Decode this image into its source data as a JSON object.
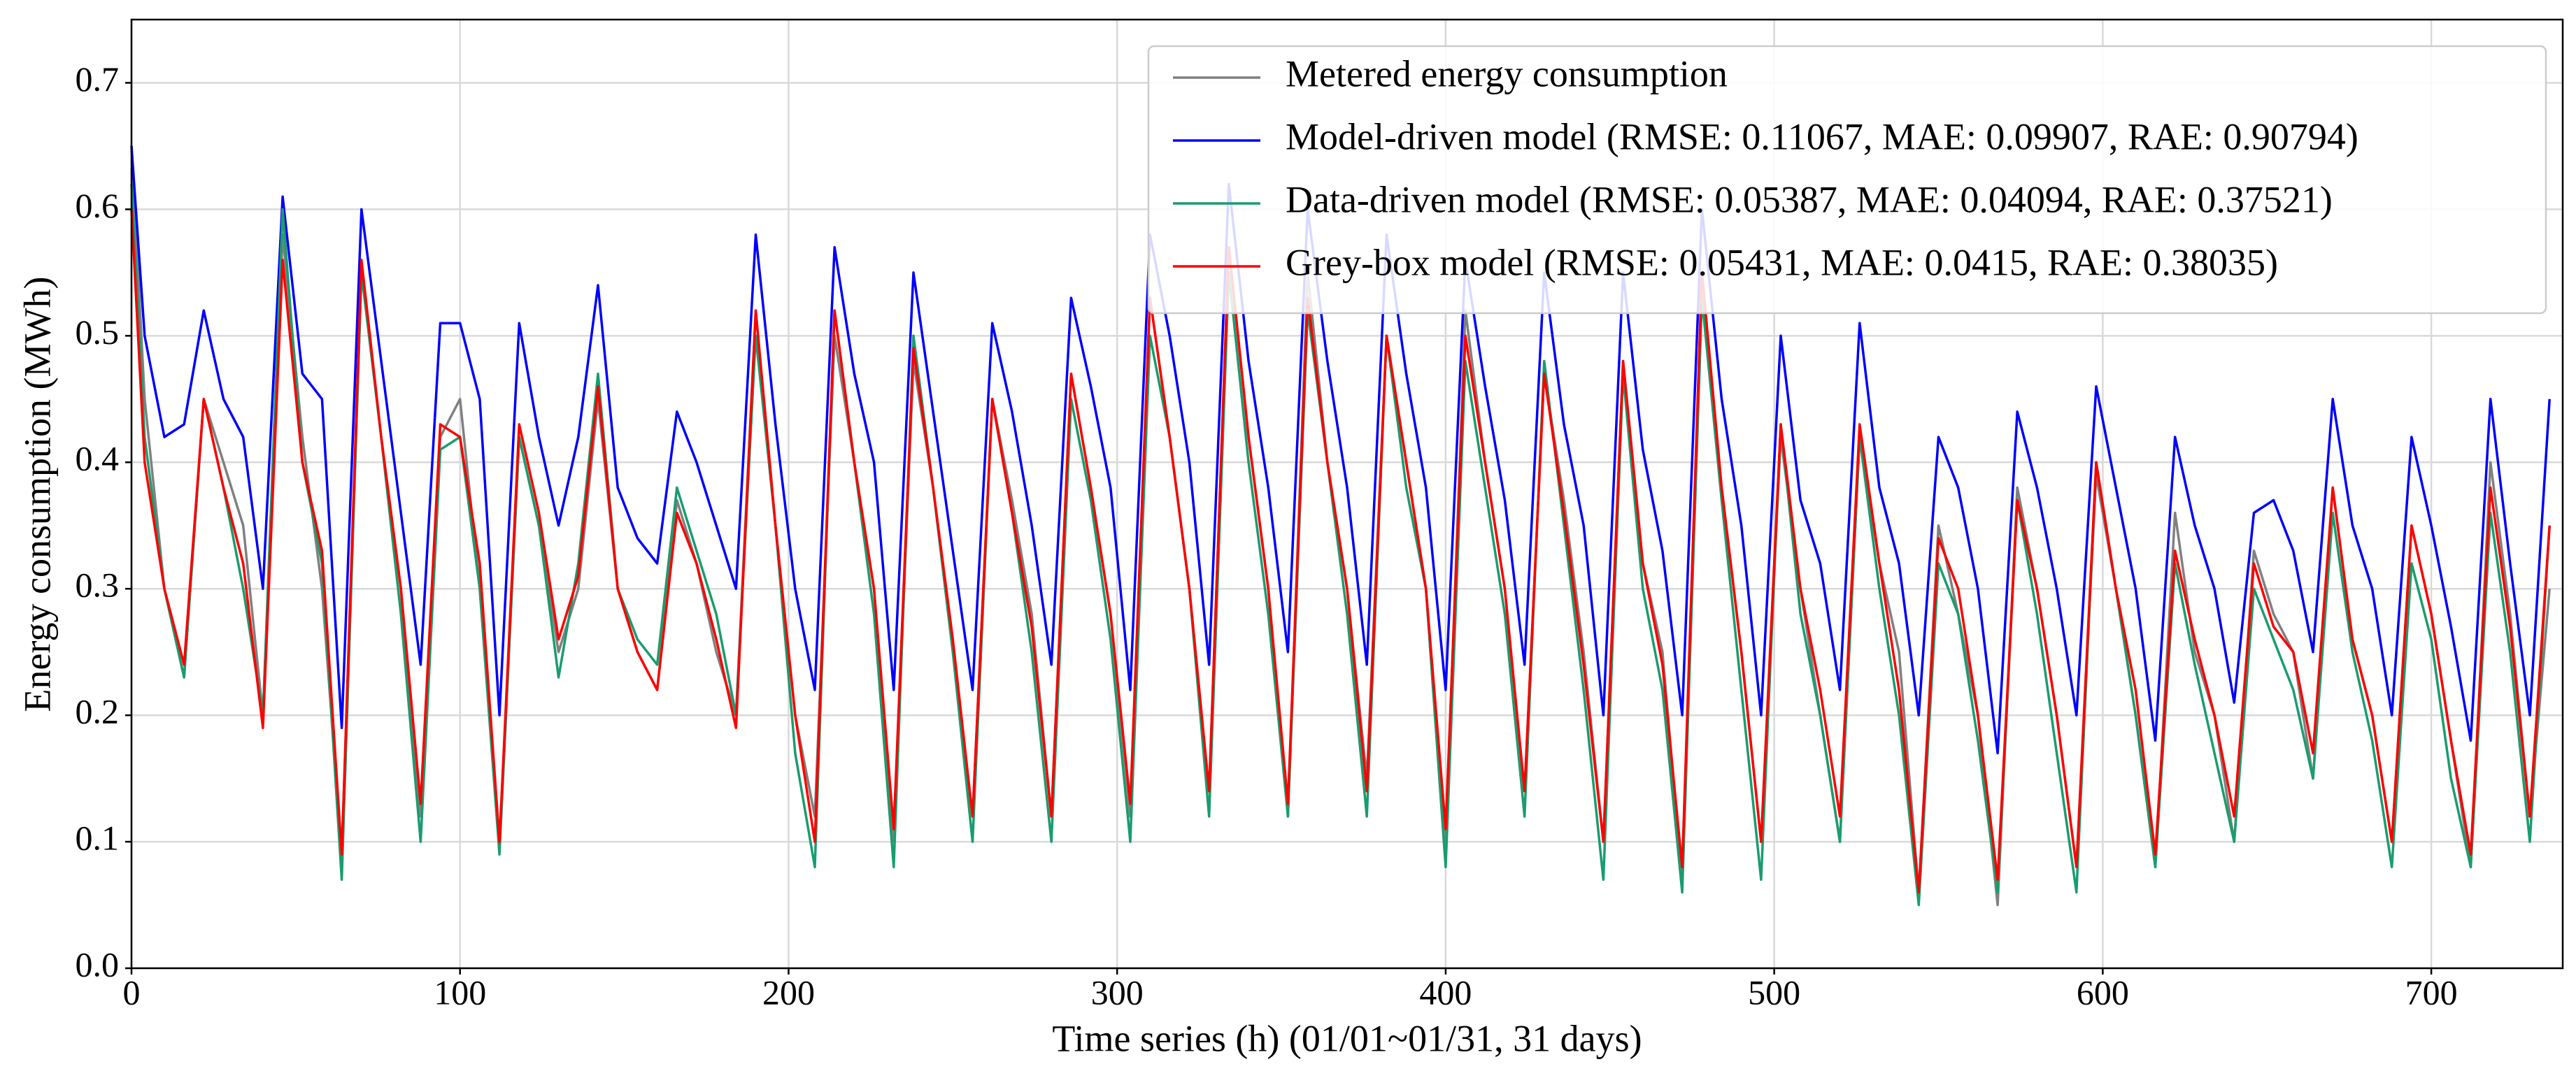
{
  "chart_data": {
    "type": "line",
    "x_label": "Time series (h) (01/01~01/31, 31 days)",
    "y_label": "Energy consumption (MWh)",
    "xlim": [
      0,
      740
    ],
    "ylim": [
      0,
      0.75
    ],
    "xticks": [
      0,
      100,
      200,
      300,
      400,
      500,
      600,
      700
    ],
    "yticks": [
      {
        "value": 0,
        "label": "0.0"
      },
      0.1,
      0.2,
      0.3,
      0.4,
      0.5,
      0.6,
      0.7
    ],
    "grid": true,
    "legend": "upper right",
    "x": [
      0,
      4,
      10,
      16,
      22,
      28,
      34,
      40,
      46,
      52,
      58,
      64,
      70,
      76,
      82,
      88,
      94,
      100,
      106,
      112,
      118,
      124,
      130,
      136,
      142,
      148,
      154,
      160,
      166,
      172,
      178,
      184,
      190,
      196,
      202,
      208,
      214,
      220,
      226,
      232,
      238,
      244,
      250,
      256,
      262,
      268,
      274,
      280,
      286,
      292,
      298,
      304,
      310,
      316,
      322,
      328,
      334,
      340,
      346,
      352,
      358,
      364,
      370,
      376,
      382,
      388,
      394,
      400,
      406,
      412,
      418,
      424,
      430,
      436,
      442,
      448,
      454,
      460,
      466,
      472,
      478,
      484,
      490,
      496,
      502,
      508,
      514,
      520,
      526,
      532,
      538,
      544,
      550,
      556,
      562,
      568,
      574,
      580,
      586,
      592,
      598,
      604,
      610,
      616,
      622,
      628,
      634,
      640,
      646,
      652,
      658,
      664,
      670,
      676,
      682,
      688,
      694,
      700,
      706,
      712,
      718,
      724,
      730,
      736
    ],
    "series": [
      {
        "name": "Metered energy consumption",
        "color": "#808080",
        "values": [
          0.65,
          0.45,
          0.3,
          0.23,
          0.45,
          0.4,
          0.35,
          0.2,
          0.58,
          0.42,
          0.3,
          0.09,
          0.55,
          0.42,
          0.3,
          0.12,
          0.42,
          0.45,
          0.3,
          0.1,
          0.42,
          0.35,
          0.25,
          0.3,
          0.45,
          0.3,
          0.25,
          0.22,
          0.37,
          0.32,
          0.25,
          0.2,
          0.52,
          0.35,
          0.2,
          0.12,
          0.5,
          0.4,
          0.3,
          0.1,
          0.48,
          0.38,
          0.25,
          0.12,
          0.45,
          0.37,
          0.28,
          0.12,
          0.47,
          0.38,
          0.28,
          0.12,
          0.53,
          0.42,
          0.3,
          0.14,
          0.57,
          0.42,
          0.3,
          0.12,
          0.55,
          0.4,
          0.3,
          0.15,
          0.5,
          0.4,
          0.3,
          0.1,
          0.52,
          0.4,
          0.3,
          0.14,
          0.47,
          0.37,
          0.25,
          0.1,
          0.48,
          0.32,
          0.25,
          0.07,
          0.55,
          0.38,
          0.25,
          0.1,
          0.42,
          0.3,
          0.2,
          0.1,
          0.42,
          0.32,
          0.25,
          0.06,
          0.35,
          0.28,
          0.2,
          0.05,
          0.38,
          0.3,
          0.2,
          0.08,
          0.39,
          0.3,
          0.2,
          0.08,
          0.36,
          0.25,
          0.2,
          0.1,
          0.33,
          0.28,
          0.25,
          0.15,
          0.38,
          0.26,
          0.2,
          0.1,
          0.35,
          0.28,
          0.18,
          0.08,
          0.4,
          0.28,
          0.12,
          0.3
        ]
      },
      {
        "name": "Model-driven model (RMSE: 0.11067, MAE: 0.09907, RAE: 0.90794)",
        "color": "#0000ff",
        "values": [
          0.65,
          0.5,
          0.42,
          0.43,
          0.52,
          0.45,
          0.42,
          0.3,
          0.61,
          0.47,
          0.45,
          0.19,
          0.6,
          0.48,
          0.36,
          0.24,
          0.51,
          0.51,
          0.45,
          0.2,
          0.51,
          0.42,
          0.35,
          0.42,
          0.54,
          0.38,
          0.34,
          0.32,
          0.44,
          0.4,
          0.35,
          0.3,
          0.58,
          0.43,
          0.3,
          0.22,
          0.57,
          0.47,
          0.4,
          0.22,
          0.55,
          0.44,
          0.33,
          0.22,
          0.51,
          0.44,
          0.35,
          0.24,
          0.53,
          0.46,
          0.38,
          0.22,
          0.58,
          0.5,
          0.4,
          0.24,
          0.62,
          0.48,
          0.38,
          0.25,
          0.6,
          0.48,
          0.38,
          0.24,
          0.58,
          0.47,
          0.38,
          0.22,
          0.56,
          0.46,
          0.37,
          0.24,
          0.55,
          0.43,
          0.35,
          0.2,
          0.55,
          0.41,
          0.33,
          0.2,
          0.6,
          0.45,
          0.35,
          0.2,
          0.5,
          0.37,
          0.32,
          0.22,
          0.51,
          0.38,
          0.32,
          0.2,
          0.42,
          0.38,
          0.3,
          0.17,
          0.44,
          0.38,
          0.3,
          0.2,
          0.46,
          0.38,
          0.3,
          0.18,
          0.42,
          0.35,
          0.3,
          0.21,
          0.36,
          0.37,
          0.33,
          0.25,
          0.45,
          0.35,
          0.3,
          0.2,
          0.42,
          0.35,
          0.27,
          0.18,
          0.45,
          0.32,
          0.2,
          0.45
        ]
      },
      {
        "name": "Data-driven model (RMSE: 0.05387, MAE: 0.04094, RAE: 0.37521)",
        "color": "#1a9c6e",
        "values": [
          0.62,
          0.42,
          0.3,
          0.23,
          0.45,
          0.38,
          0.3,
          0.2,
          0.6,
          0.4,
          0.32,
          0.07,
          0.55,
          0.42,
          0.28,
          0.1,
          0.41,
          0.42,
          0.3,
          0.09,
          0.42,
          0.35,
          0.23,
          0.32,
          0.47,
          0.3,
          0.26,
          0.24,
          0.38,
          0.33,
          0.28,
          0.2,
          0.5,
          0.35,
          0.17,
          0.08,
          0.52,
          0.4,
          0.28,
          0.08,
          0.5,
          0.38,
          0.25,
          0.1,
          0.45,
          0.36,
          0.25,
          0.1,
          0.45,
          0.37,
          0.26,
          0.1,
          0.5,
          0.42,
          0.3,
          0.12,
          0.55,
          0.4,
          0.28,
          0.12,
          0.52,
          0.4,
          0.28,
          0.12,
          0.5,
          0.38,
          0.3,
          0.08,
          0.48,
          0.38,
          0.28,
          0.12,
          0.48,
          0.35,
          0.22,
          0.07,
          0.47,
          0.3,
          0.22,
          0.06,
          0.53,
          0.37,
          0.22,
          0.07,
          0.43,
          0.28,
          0.2,
          0.1,
          0.42,
          0.3,
          0.2,
          0.05,
          0.32,
          0.28,
          0.18,
          0.06,
          0.37,
          0.28,
          0.17,
          0.06,
          0.4,
          0.3,
          0.2,
          0.08,
          0.32,
          0.24,
          0.17,
          0.1,
          0.3,
          0.26,
          0.22,
          0.15,
          0.36,
          0.25,
          0.18,
          0.08,
          0.32,
          0.26,
          0.15,
          0.08,
          0.36,
          0.25,
          0.1,
          0.35
        ]
      },
      {
        "name": "Grey-box model (RMSE: 0.05431, MAE: 0.0415, RAE: 0.38035)",
        "color": "#ff0000",
        "values": [
          0.6,
          0.4,
          0.3,
          0.24,
          0.45,
          0.38,
          0.32,
          0.19,
          0.56,
          0.4,
          0.33,
          0.09,
          0.56,
          0.42,
          0.3,
          0.13,
          0.43,
          0.42,
          0.32,
          0.1,
          0.43,
          0.36,
          0.26,
          0.31,
          0.46,
          0.3,
          0.25,
          0.22,
          0.36,
          0.32,
          0.26,
          0.19,
          0.52,
          0.35,
          0.2,
          0.1,
          0.52,
          0.4,
          0.3,
          0.11,
          0.49,
          0.38,
          0.26,
          0.12,
          0.45,
          0.36,
          0.27,
          0.12,
          0.47,
          0.38,
          0.28,
          0.13,
          0.53,
          0.42,
          0.3,
          0.14,
          0.57,
          0.42,
          0.3,
          0.13,
          0.53,
          0.4,
          0.3,
          0.14,
          0.5,
          0.4,
          0.3,
          0.11,
          0.5,
          0.4,
          0.3,
          0.14,
          0.47,
          0.36,
          0.24,
          0.1,
          0.48,
          0.32,
          0.24,
          0.08,
          0.55,
          0.38,
          0.25,
          0.1,
          0.43,
          0.3,
          0.22,
          0.12,
          0.43,
          0.32,
          0.22,
          0.06,
          0.34,
          0.3,
          0.2,
          0.07,
          0.37,
          0.3,
          0.2,
          0.08,
          0.4,
          0.3,
          0.22,
          0.09,
          0.33,
          0.26,
          0.2,
          0.12,
          0.32,
          0.27,
          0.25,
          0.17,
          0.38,
          0.26,
          0.2,
          0.1,
          0.35,
          0.28,
          0.18,
          0.09,
          0.38,
          0.27,
          0.12,
          0.35
        ]
      }
    ]
  }
}
